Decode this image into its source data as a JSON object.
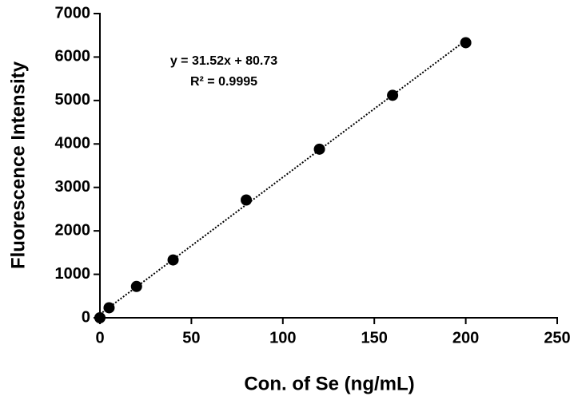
{
  "chart_data": {
    "type": "scatter",
    "x_label": "Con. of Se (ng/mL)",
    "y_label": "Fluorescence Intensity",
    "annotations": [
      "y = 31.52x + 80.73",
      "R² = 0.9995"
    ],
    "x": [
      0,
      5,
      20,
      40,
      80,
      120,
      160,
      200
    ],
    "series": [
      {
        "color": "#000000",
        "values": [
          0,
          230,
          720,
          1330,
          2710,
          3880,
          5120,
          6330
        ]
      }
    ],
    "fit_line": {
      "color": "#000000",
      "x": [
        0,
        200
      ],
      "values": [
        80.73,
        6384.73
      ]
    },
    "xlim": [
      0,
      250
    ],
    "xticks": [
      0,
      50,
      100,
      150,
      200,
      250
    ],
    "ylim": [
      0,
      7000
    ],
    "yticks": [
      0,
      1000,
      2000,
      3000,
      4000,
      5000,
      6000,
      7000
    ],
    "grid": false
  }
}
